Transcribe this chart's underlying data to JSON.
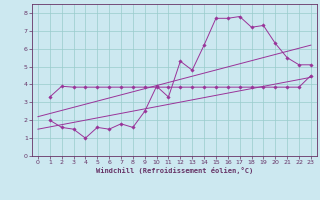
{
  "xlabel": "Windchill (Refroidissement éolien,°C)",
  "bg_color": "#cce8f0",
  "line_color": "#993399",
  "grid_color": "#99cccc",
  "axis_color": "#663366",
  "xlim": [
    -0.5,
    23.5
  ],
  "ylim": [
    0,
    8.5
  ],
  "xticks": [
    0,
    1,
    2,
    3,
    4,
    5,
    6,
    7,
    8,
    9,
    10,
    11,
    12,
    13,
    14,
    15,
    16,
    17,
    18,
    19,
    20,
    21,
    22,
    23
  ],
  "yticks": [
    0,
    1,
    2,
    3,
    4,
    5,
    6,
    7,
    8
  ],
  "line1_x": [
    1,
    2,
    3,
    4,
    5,
    6,
    7,
    8,
    9,
    10,
    11,
    12,
    13,
    14,
    15,
    16,
    17,
    18,
    19,
    20,
    21,
    22,
    23
  ],
  "line1_y": [
    3.3,
    3.9,
    3.85,
    3.85,
    3.85,
    3.85,
    3.85,
    3.85,
    3.85,
    3.85,
    3.85,
    3.85,
    3.85,
    3.85,
    3.85,
    3.85,
    3.85,
    3.85,
    3.85,
    3.85,
    3.85,
    3.85,
    4.5
  ],
  "line2_x": [
    1,
    2,
    3,
    4,
    5,
    6,
    7,
    8,
    9,
    10,
    11,
    12,
    13,
    14,
    15,
    16,
    17,
    18,
    19,
    20,
    21,
    22,
    23
  ],
  "line2_y": [
    2.0,
    1.6,
    1.5,
    1.0,
    1.6,
    1.5,
    1.8,
    1.6,
    2.5,
    3.9,
    3.3,
    5.3,
    4.8,
    6.2,
    7.7,
    7.7,
    7.8,
    7.2,
    7.3,
    6.3,
    5.5,
    5.1,
    5.1
  ],
  "line3_x": [
    0,
    23
  ],
  "line3_y": [
    1.5,
    4.4
  ],
  "line4_x": [
    0,
    23
  ],
  "line4_y": [
    2.2,
    6.2
  ],
  "tick_fontsize": 4.5,
  "xlabel_fontsize": 5.0,
  "lw": 0.7,
  "ms": 1.8
}
